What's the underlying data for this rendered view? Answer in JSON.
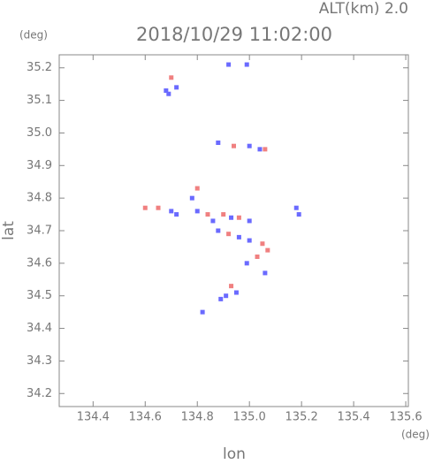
{
  "chart_data": {
    "type": "scatter",
    "title": "2018/10/29 11:02:00",
    "subtitle": "ALT(km) 2.0",
    "x_label": "lon",
    "y_label": "lat",
    "x_unit": "(deg)",
    "y_unit": "(deg)",
    "xlim": [
      134.27,
      135.61
    ],
    "ylim": [
      34.16,
      35.24
    ],
    "xticks": [
      134.4,
      134.6,
      134.8,
      {
        "value": 135,
        "label": "135.0"
      },
      135.2,
      135.4,
      135.6
    ],
    "yticks": [
      34.2,
      34.3,
      34.4,
      34.5,
      34.6,
      34.7,
      34.8,
      34.9,
      {
        "value": 35,
        "label": "35.0"
      },
      35.1,
      35.2
    ],
    "series": [
      {
        "color": "#f08080",
        "x": [
          134.7,
          134.94,
          135.06,
          134.8,
          134.6,
          134.65,
          134.84,
          134.9,
          134.96,
          135.05,
          135.07,
          134.92,
          135.03,
          134.93
        ],
        "y": [
          35.17,
          34.96,
          34.95,
          34.83,
          34.77,
          34.77,
          34.75,
          34.75,
          34.74,
          34.66,
          34.64,
          34.69,
          34.62,
          34.53
        ]
      },
      {
        "color": "#6a6aff",
        "x": [
          134.68,
          134.72,
          134.69,
          134.92,
          134.99,
          134.88,
          135.0,
          135.04,
          134.78,
          134.7,
          134.72,
          134.8,
          134.86,
          134.93,
          135.0,
          134.88,
          134.96,
          135.0,
          134.99,
          135.18,
          135.19,
          135.06,
          134.91,
          134.89,
          134.95,
          134.82
        ],
        "y": [
          35.13,
          35.14,
          35.12,
          35.21,
          35.21,
          34.97,
          34.96,
          34.95,
          34.8,
          34.76,
          34.75,
          34.76,
          34.73,
          34.74,
          34.73,
          34.7,
          34.68,
          34.67,
          34.6,
          34.77,
          34.75,
          34.57,
          34.5,
          34.49,
          34.51,
          34.45
        ]
      }
    ]
  }
}
